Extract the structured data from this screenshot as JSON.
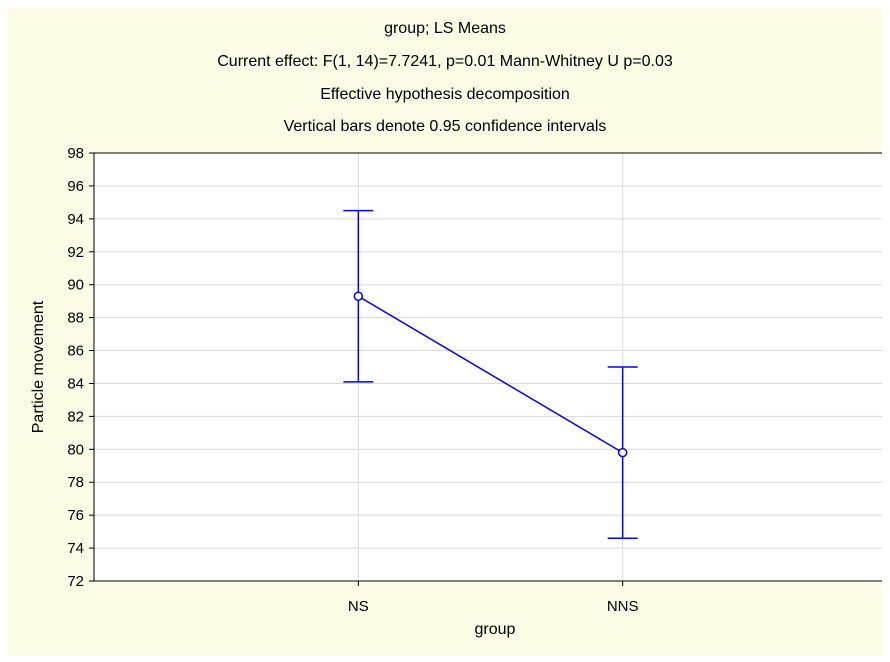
{
  "chart_data": {
    "type": "line",
    "title_lines": [
      "group; LS Means",
      "Current effect: F(1, 14)=7.7241, p=0.01 Mann-Whitney U p=0.03",
      "Effective hypothesis decomposition",
      "Vertical bars denote 0.95 confidence intervals"
    ],
    "xlabel": "group",
    "ylabel": "Particle movement",
    "categories": [
      "NS",
      "NNS"
    ],
    "series": [
      {
        "values": [
          89.3,
          79.8
        ],
        "ci_lower": [
          84.1,
          74.6
        ],
        "ci_upper": [
          94.5,
          85.0
        ],
        "color": "#0000ff"
      }
    ],
    "ylim": [
      72,
      98
    ],
    "yticks": [
      "72",
      "74",
      "76",
      "78",
      "80",
      "82",
      "84",
      "86",
      "88",
      "90",
      "92",
      "94",
      "96",
      "98"
    ],
    "grid": true,
    "background_color": "#fbfbe6",
    "plot_color": "#ffffff",
    "grid_color": "#d9d9d9"
  }
}
